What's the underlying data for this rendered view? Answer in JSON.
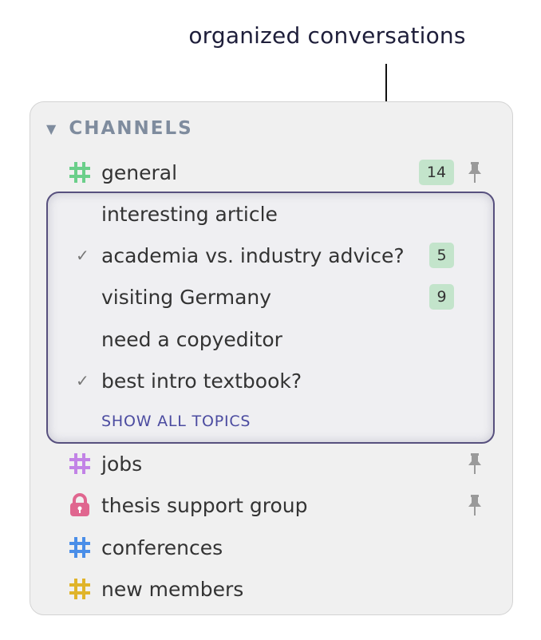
{
  "annotation": "organized conversations",
  "sidebar": {
    "section_title": "CHANNELS",
    "channels_top": [
      {
        "name": "general",
        "icon": "hash-icon",
        "color": "#6bcf8a",
        "unread": "14",
        "pinned": true
      }
    ],
    "topics": [
      {
        "name": "interesting article",
        "resolved": false,
        "unread": null
      },
      {
        "name": "academia vs. industry advice?",
        "resolved": true,
        "unread": "5"
      },
      {
        "name": "visiting Germany",
        "resolved": false,
        "unread": "9"
      },
      {
        "name": "need a copyeditor",
        "resolved": false,
        "unread": null
      },
      {
        "name": "best intro textbook?",
        "resolved": true,
        "unread": null
      }
    ],
    "show_all": "SHOW ALL TOPICS",
    "channels": [
      {
        "name": "jobs",
        "icon": "hash-icon",
        "color": "#c283e6",
        "pinned": true
      },
      {
        "name": "thesis support group",
        "icon": "lock-icon",
        "color": "#e0668f",
        "pinned": true
      },
      {
        "name": "conferences",
        "icon": "hash-icon",
        "color": "#4a8ee8",
        "pinned": false
      },
      {
        "name": "new members",
        "icon": "hash-icon",
        "color": "#e0b42a",
        "pinned": false
      }
    ],
    "colors": {
      "badge": "#c3e4cb",
      "highlight_border": "#57507e",
      "link": "#4b4ba0"
    }
  }
}
